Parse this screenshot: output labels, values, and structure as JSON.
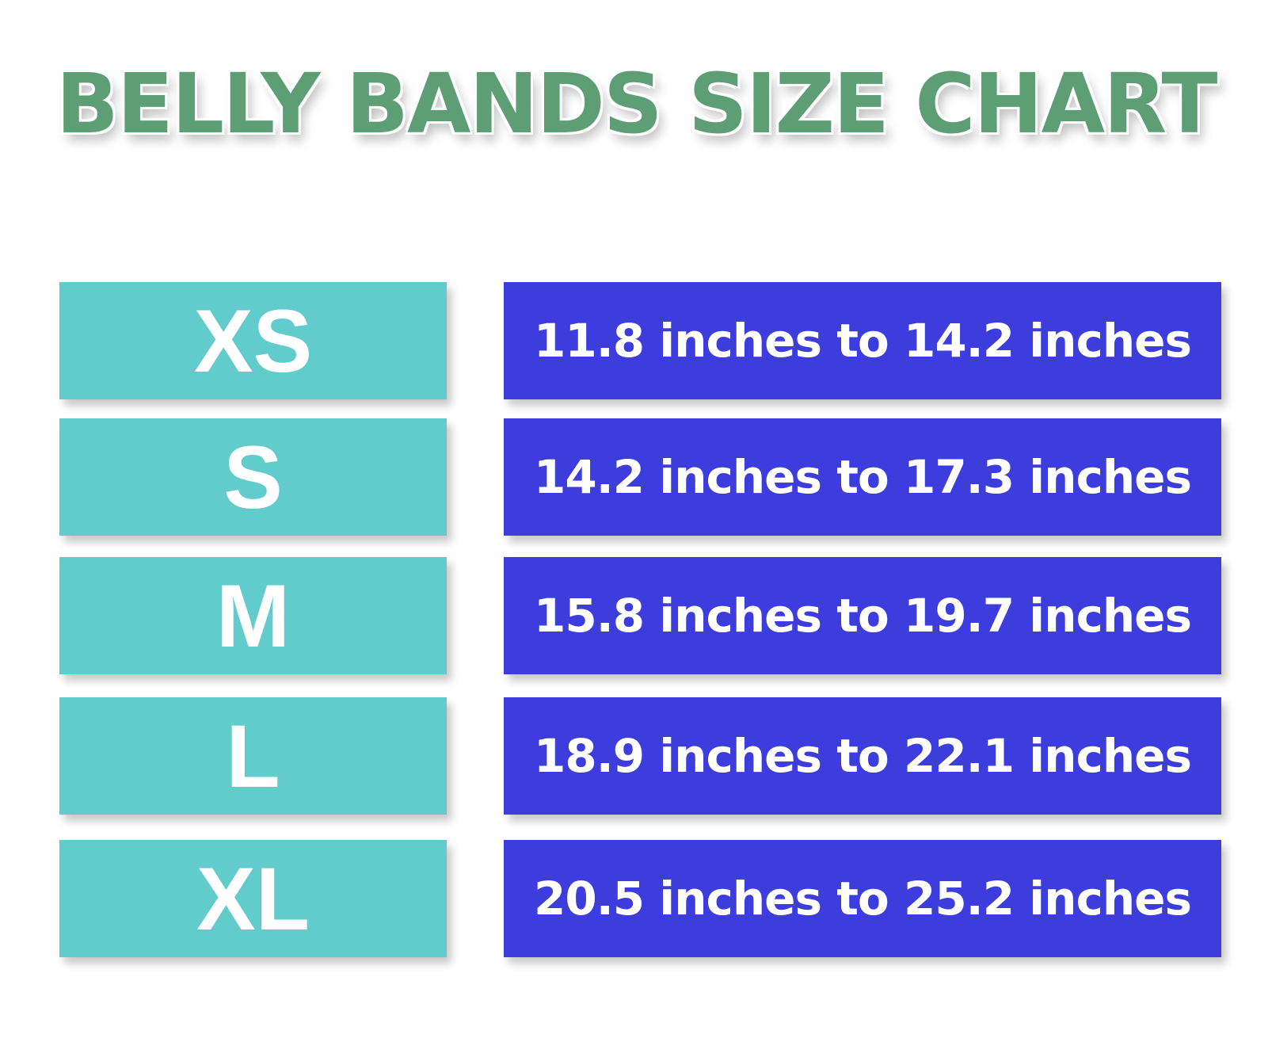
{
  "header": {
    "title": "BELLY BANDS SIZE CHART"
  },
  "table": {
    "rows": [
      [
        "XS",
        "11.8 inches to 14.2 inches"
      ],
      [
        "S",
        "14.2 inches to 17.3 inches"
      ],
      [
        "M",
        "15.8 inches to 19.7 inches"
      ],
      [
        "L",
        "18.9 inches to 22.1 inches"
      ],
      [
        "XL",
        "20.5 inches to 25.2 inches"
      ]
    ]
  }
}
